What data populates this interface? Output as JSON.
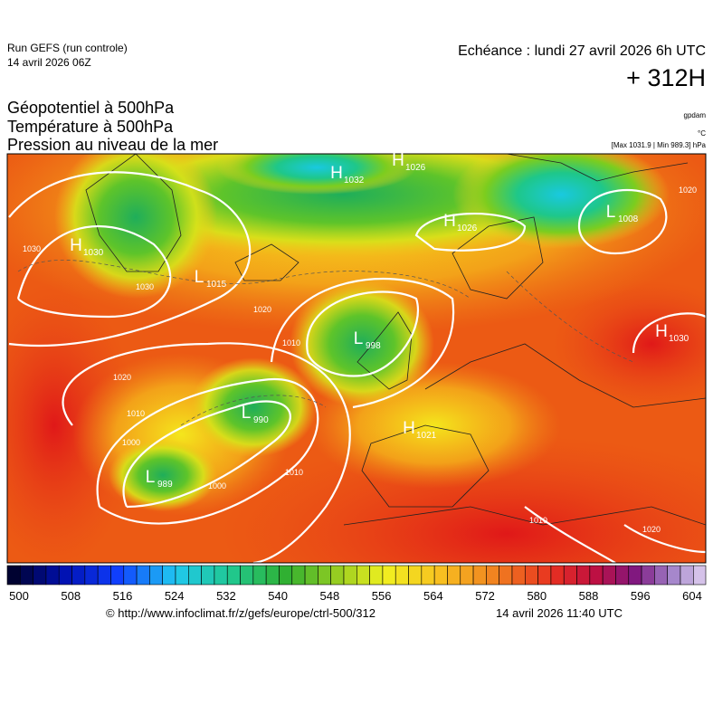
{
  "header": {
    "run": "Run GEFS (run controle)",
    "date": "14 avril 2026 06Z",
    "echeance": "Echéance : lundi 27 avril 2026 6h UTC",
    "lead": "+ 312H",
    "fields": [
      "Géopotentiel à 500hPa",
      "Température à 500hPa",
      "Pression au niveau de la mer"
    ],
    "units": [
      "gpdam",
      "°C"
    ],
    "range": "[Max 1031.9 | Min 989.3] hPa"
  },
  "map": {
    "centers": [
      {
        "type": "H",
        "value": "1032"
      },
      {
        "type": "H",
        "value": "1026"
      },
      {
        "type": "H",
        "value": "1026"
      },
      {
        "type": "L",
        "value": "1008"
      },
      {
        "type": "H",
        "value": "1030"
      },
      {
        "type": "L",
        "value": "1015"
      },
      {
        "type": "L",
        "value": "998"
      },
      {
        "type": "L",
        "value": "990"
      },
      {
        "type": "L",
        "value": "989"
      },
      {
        "type": "H",
        "value": "1021"
      },
      {
        "type": "H",
        "value": "1030"
      }
    ],
    "isobar_labels": [
      "1030",
      "1030",
      "1020",
      "1020",
      "1010",
      "1010",
      "1000",
      "1000",
      "1010",
      "1010",
      "1020",
      "1020"
    ]
  },
  "colorbar": {
    "labels": [
      500,
      508,
      516,
      524,
      532,
      540,
      548,
      556,
      564,
      572,
      580,
      588,
      596,
      604
    ]
  },
  "footer": {
    "url": "© http://www.infoclimat.fr/z/gefs/europe/ctrl-500/312",
    "time": "14 avril 2026 11:40 UTC"
  }
}
